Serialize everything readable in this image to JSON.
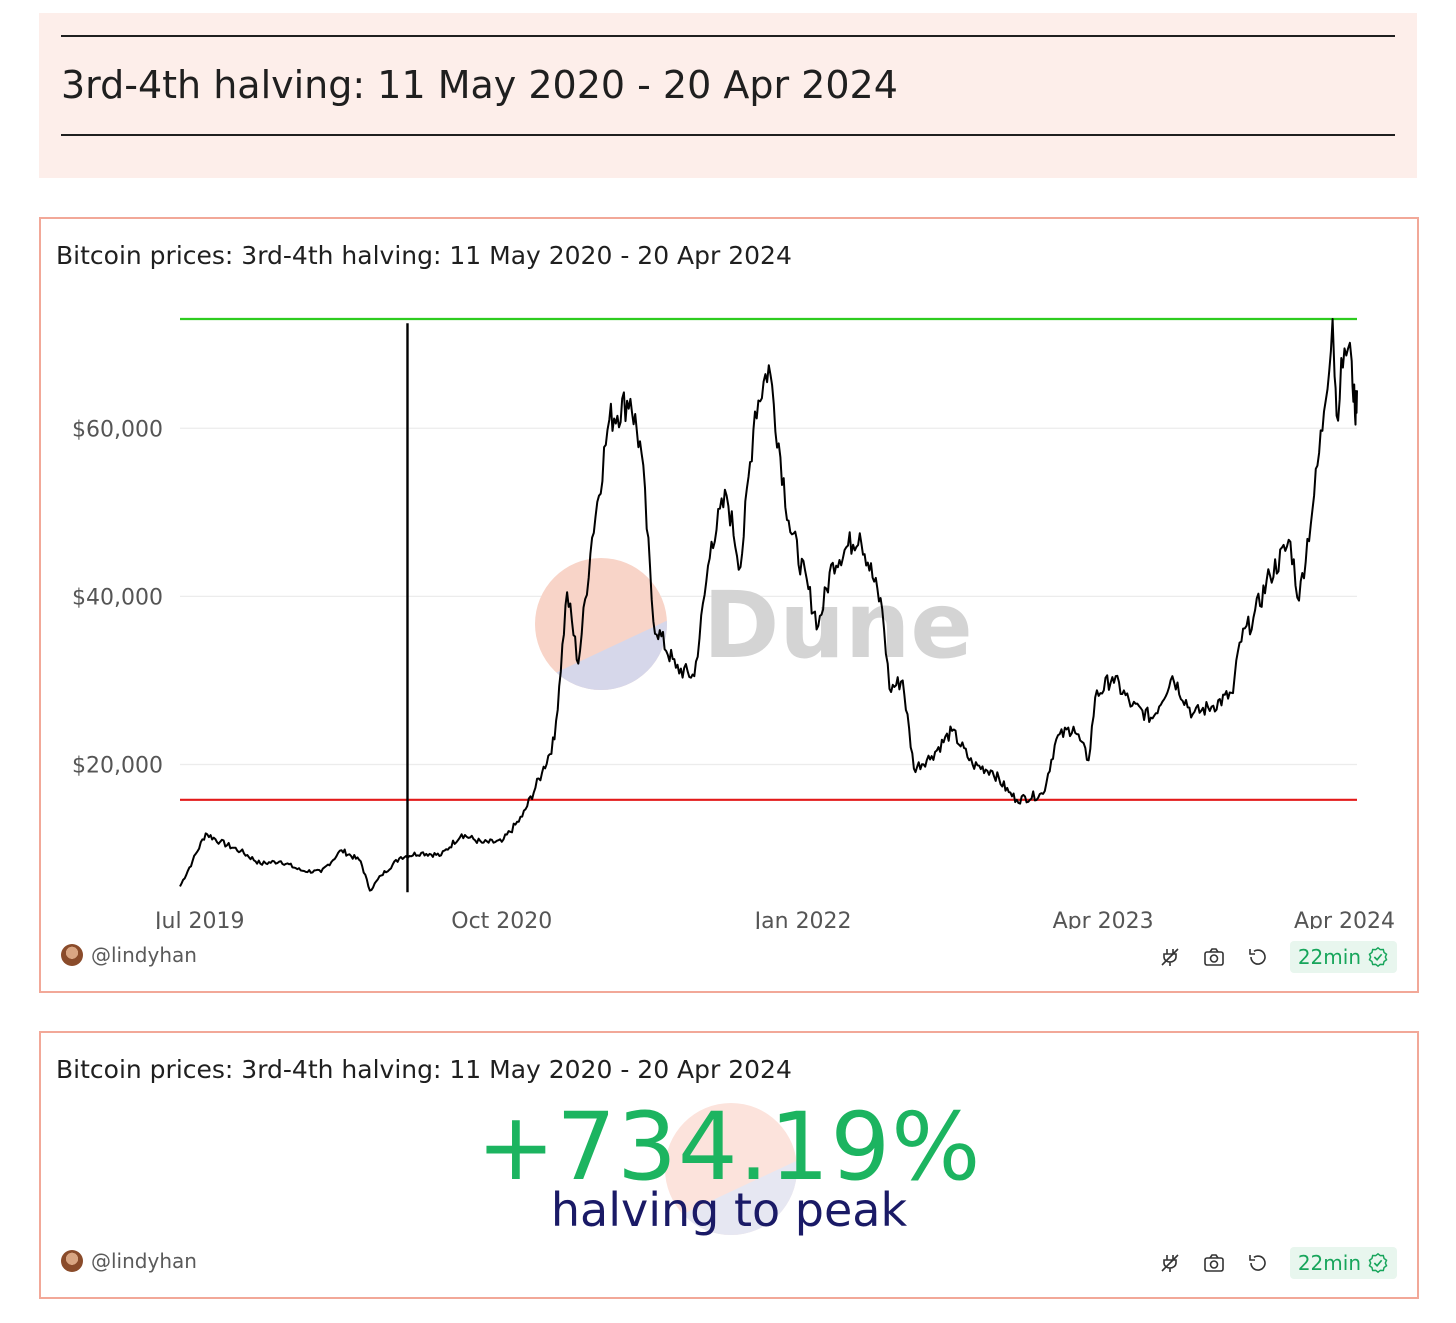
{
  "header": {
    "title": "3rd-4th halving: 11 May 2020 - 20 Apr 2024"
  },
  "chart_card": {
    "title": "Bitcoin prices: 3rd-4th halving: 11 May 2020 - 20 Apr 2024",
    "author": "@lindyhan",
    "refresh_label": "22min",
    "watermark": "Dune"
  },
  "counter_card": {
    "title": "Bitcoin prices: 3rd-4th halving: 11 May 2020 - 20 Apr 2024",
    "value": "+734.19%",
    "subtitle": "halving to peak",
    "author": "@lindyhan",
    "refresh_label": "22min"
  },
  "colors": {
    "peak_line": "#2ecc1f",
    "floor_line": "#e31a1a",
    "price_line": "#000000",
    "counter_value": "#1cb460",
    "counter_subtitle": "#1a1a66",
    "badge_text": "#17a55b"
  },
  "chart_data": {
    "type": "line",
    "title": "Bitcoin prices: 3rd-4th halving: 11 May 2020 - 20 Apr 2024",
    "xlabel": "",
    "ylabel": "",
    "x_range": [
      "2019-06-01",
      "2024-04-20"
    ],
    "ylim": [
      4000,
      73000
    ],
    "grid": true,
    "y_ticks": [
      {
        "value": 20000,
        "label": "$20,000"
      },
      {
        "value": 40000,
        "label": "$40,000"
      },
      {
        "value": 60000,
        "label": "$60,000"
      }
    ],
    "x_ticks": [
      {
        "value": "2019-07-01",
        "label": "Jul 2019"
      },
      {
        "value": "2020-10-01",
        "label": "Oct 2020"
      },
      {
        "value": "2022-01-01",
        "label": "Jan 2022"
      },
      {
        "value": "2023-04-01",
        "label": "Apr 2023"
      },
      {
        "value": "2024-04-01",
        "label": "Apr 2024"
      }
    ],
    "reference_lines": [
      {
        "type": "horizontal",
        "y": 73000
      },
      {
        "type": "horizontal",
        "y": 15800
      }
    ],
    "spike": {
      "x": "2020-05-11",
      "y_low": 4800,
      "y_high": 72500
    },
    "series": [
      {
        "x": [
          "2019-06-01",
          "2019-06-20",
          "2019-07-10",
          "2019-08-01",
          "2019-09-01",
          "2019-10-01",
          "2019-11-01",
          "2019-12-01",
          "2020-01-01",
          "2020-02-01",
          "2020-03-01",
          "2020-03-15",
          "2020-04-01",
          "2020-05-01",
          "2020-06-01",
          "2020-07-01",
          "2020-08-01",
          "2020-09-01",
          "2020-10-01",
          "2020-11-01",
          "2020-12-01",
          "2020-12-20",
          "2021-01-08",
          "2021-01-25",
          "2021-02-15",
          "2021-03-13",
          "2021-04-14",
          "2021-05-01",
          "2021-05-19",
          "2021-06-22",
          "2021-07-20",
          "2021-08-15",
          "2021-09-07",
          "2021-09-28",
          "2021-10-20",
          "2021-11-10",
          "2021-12-10",
          "2022-01-24",
          "2022-02-15",
          "2022-03-28",
          "2022-05-01",
          "2022-05-12",
          "2022-06-01",
          "2022-06-18",
          "2022-07-15",
          "2022-08-15",
          "2022-09-15",
          "2022-10-15",
          "2022-11-09",
          "2022-11-21",
          "2022-12-31",
          "2023-01-20",
          "2023-02-15",
          "2023-03-10",
          "2023-03-20",
          "2023-04-15",
          "2023-05-15",
          "2023-06-15",
          "2023-07-15",
          "2023-08-15",
          "2023-09-15",
          "2023-10-15",
          "2023-10-25",
          "2023-11-15",
          "2023-12-10",
          "2024-01-10",
          "2024-01-23",
          "2024-02-15",
          "2024-03-01",
          "2024-03-14",
          "2024-03-20",
          "2024-04-01",
          "2024-04-12",
          "2024-04-17",
          "2024-04-20"
        ],
        "y": [
          5500,
          8500,
          11800,
          10800,
          9700,
          8200,
          8500,
          7400,
          7200,
          9800,
          8500,
          5000,
          6800,
          9000,
          9500,
          9200,
          11700,
          10700,
          10800,
          13800,
          19000,
          23000,
          40500,
          32000,
          47000,
          61000,
          63500,
          57000,
          37000,
          31500,
          30500,
          46500,
          52000,
          43500,
          62000,
          67500,
          49000,
          36500,
          44000,
          47500,
          38500,
          29000,
          30000,
          19500,
          21000,
          24000,
          20000,
          19200,
          16700,
          15800,
          16500,
          23000,
          24500,
          20500,
          28000,
          30400,
          27000,
          25500,
          30500,
          26000,
          27000,
          28500,
          34500,
          37500,
          42500,
          46500,
          39500,
          52000,
          62000,
          73000,
          61500,
          69500,
          68000,
          61500,
          64500
        ]
      }
    ]
  }
}
